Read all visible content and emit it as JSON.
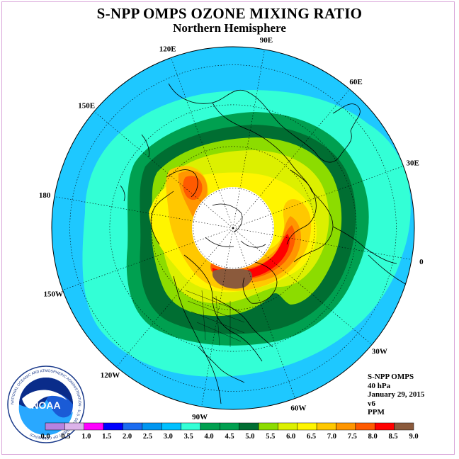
{
  "title": "S-NPP OMPS OZONE MIXING RATIO",
  "subtitle": "Northern Hemisphere",
  "longitude_labels": [
    {
      "text": "90E",
      "angle_deg": 90
    },
    {
      "text": "60E",
      "angle_deg": 60
    },
    {
      "text": "30E",
      "angle_deg": 30
    },
    {
      "text": "0",
      "angle_deg": 0
    },
    {
      "text": "30W",
      "angle_deg": -30
    },
    {
      "text": "60W",
      "angle_deg": -60
    },
    {
      "text": "90W",
      "angle_deg": -90
    },
    {
      "text": "120W",
      "angle_deg": -120
    },
    {
      "text": "150W",
      "angle_deg": -150
    },
    {
      "text": "180",
      "angle_deg": 180
    },
    {
      "text": "150E",
      "angle_deg": 150
    },
    {
      "text": "120E",
      "angle_deg": 120
    }
  ],
  "info": {
    "instrument": "S-NPP OMPS",
    "level": "40 hPa",
    "date": "January 29, 2015",
    "version": "v6",
    "units": "PPM"
  },
  "logo": {
    "text": "NOAA",
    "ring_text": "NATIONAL OCEANIC AND ATMOSPHERIC ADMINISTRATION · U.S. DEPARTMENT OF COMMERCE"
  },
  "colorbar": {
    "colors": [
      "#b583e0",
      "#dcb3ea",
      "#ff00ff",
      "#0000ff",
      "#1c6cf0",
      "#0096f0",
      "#00c0ff",
      "#33ffd6",
      "#00a050",
      "#00a050",
      "#006e32",
      "#8cdc00",
      "#dcf000",
      "#fff500",
      "#ffc800",
      "#ff9600",
      "#ff5a00",
      "#ff0000",
      "#8b5a3c"
    ],
    "ticks": [
      "0.0",
      "0.5",
      "1.0",
      "1.5",
      "2.0",
      "2.5",
      "3.0",
      "3.5",
      "4.0",
      "4.5",
      "5.0",
      "5.5",
      "6.0",
      "6.5",
      "7.0",
      "7.5",
      "8.0",
      "8.5",
      "9.0"
    ]
  },
  "map_colors": {
    "ring_outer": "#1ec8ff",
    "ring_cyan": "#33ffd6",
    "ring_green": "#00a050",
    "ring_darkgreen": "#006e32",
    "lime": "#8cdc00",
    "yellowgreen": "#dcf000",
    "yellow": "#fff500",
    "orange1": "#ffc800",
    "orange2": "#ff9600",
    "orange3": "#ff5a00",
    "red": "#ff0000",
    "brown": "#8b5a3c",
    "polar_night": "#ffffff"
  }
}
